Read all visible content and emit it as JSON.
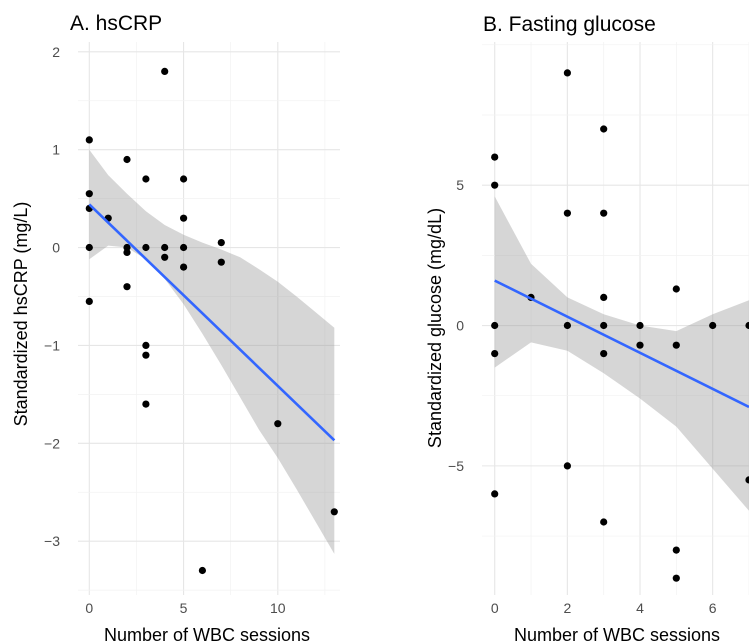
{
  "chart_data": [
    {
      "type": "scatter",
      "title": "A. hsCRP",
      "xlabel": "Number of WBC sessions",
      "ylabel": "Standardized hsCRP (mg/L)",
      "xlim": [
        -0.6,
        13.3
      ],
      "ylim": [
        -3.55,
        2.1
      ],
      "x_ticks": [
        0,
        5,
        10
      ],
      "y_ticks": [
        -3,
        -2,
        -1,
        0,
        1,
        2
      ],
      "grid": true,
      "points": [
        {
          "x": 0,
          "y": 1.1
        },
        {
          "x": 0,
          "y": 0.55
        },
        {
          "x": 0,
          "y": 0.4
        },
        {
          "x": 0,
          "y": 0
        },
        {
          "x": 0,
          "y": -0.55
        },
        {
          "x": 1,
          "y": 0.3
        },
        {
          "x": 2,
          "y": 0.9
        },
        {
          "x": 2,
          "y": 0
        },
        {
          "x": 2,
          "y": -0.05
        },
        {
          "x": 2,
          "y": -0.4
        },
        {
          "x": 3,
          "y": 0.7
        },
        {
          "x": 3,
          "y": 0
        },
        {
          "x": 3,
          "y": -1.0
        },
        {
          "x": 3,
          "y": -1.1
        },
        {
          "x": 3,
          "y": -1.6
        },
        {
          "x": 4,
          "y": 1.8
        },
        {
          "x": 4,
          "y": 0
        },
        {
          "x": 4,
          "y": -0.1
        },
        {
          "x": 5,
          "y": 0.7
        },
        {
          "x": 5,
          "y": 0.3
        },
        {
          "x": 5,
          "y": 0
        },
        {
          "x": 5,
          "y": -0.2
        },
        {
          "x": 6,
          "y": -3.3
        },
        {
          "x": 7,
          "y": 0.05
        },
        {
          "x": 7,
          "y": -0.15
        },
        {
          "x": 10,
          "y": -1.8
        },
        {
          "x": 13,
          "y": -2.7
        }
      ],
      "fit_line": {
        "x": [
          0,
          13
        ],
        "y": [
          0.44,
          -1.97
        ],
        "color": "#3366FF"
      },
      "confidence_band": {
        "x": [
          0,
          1,
          2,
          3,
          4,
          5,
          6,
          7,
          8,
          9,
          10,
          11,
          12,
          13
        ],
        "lower": [
          -0.12,
          0.02,
          0.0,
          -0.12,
          -0.32,
          -0.58,
          -0.88,
          -1.2,
          -1.53,
          -1.86,
          -2.15,
          -2.47,
          -2.8,
          -3.13
        ],
        "upper": [
          1.0,
          0.74,
          0.55,
          0.37,
          0.23,
          0.13,
          0.05,
          -0.02,
          -0.1,
          -0.22,
          -0.35,
          -0.5,
          -0.66,
          -0.82
        ]
      }
    },
    {
      "type": "scatter",
      "title": "B. Fasting glucose",
      "xlabel": "Number of WBC sessions",
      "ylabel": "Standardized glucose (mg/dL)",
      "xlim": [
        -0.35,
        7.0
      ],
      "ylim": [
        -9.6,
        10.1
      ],
      "x_ticks": [
        0,
        2,
        4,
        6
      ],
      "y_ticks": [
        -5,
        0,
        5
      ],
      "grid": true,
      "points": [
        {
          "x": 0,
          "y": 6
        },
        {
          "x": 0,
          "y": 5
        },
        {
          "x": 0,
          "y": 0
        },
        {
          "x": 0,
          "y": -1
        },
        {
          "x": 0,
          "y": -6
        },
        {
          "x": 1,
          "y": 1
        },
        {
          "x": 2,
          "y": 9
        },
        {
          "x": 2,
          "y": 4
        },
        {
          "x": 2,
          "y": 0
        },
        {
          "x": 2,
          "y": -5
        },
        {
          "x": 3,
          "y": 7
        },
        {
          "x": 3,
          "y": 4
        },
        {
          "x": 3,
          "y": 1
        },
        {
          "x": 3,
          "y": 0
        },
        {
          "x": 3,
          "y": -1
        },
        {
          "x": 3,
          "y": -7
        },
        {
          "x": 4,
          "y": 0
        },
        {
          "x": 4,
          "y": -0.7
        },
        {
          "x": 5,
          "y": 1.3
        },
        {
          "x": 5,
          "y": -0.7
        },
        {
          "x": 5,
          "y": -8
        },
        {
          "x": 5,
          "y": -9
        },
        {
          "x": 6,
          "y": 0
        },
        {
          "x": 7,
          "y": 0
        },
        {
          "x": 7,
          "y": -5.5
        }
      ],
      "fit_line": {
        "x": [
          0,
          7
        ],
        "y": [
          1.6,
          -2.9
        ],
        "color": "#3366FF"
      },
      "confidence_band": {
        "x": [
          0,
          1,
          2,
          3,
          4,
          5,
          6,
          7
        ],
        "lower": [
          -1.5,
          -0.6,
          -0.9,
          -1.7,
          -2.6,
          -3.6,
          -5.1,
          -6.6
        ],
        "upper": [
          4.6,
          2.2,
          1.0,
          0.4,
          0.0,
          -0.2,
          0.4,
          0.9
        ]
      }
    }
  ]
}
